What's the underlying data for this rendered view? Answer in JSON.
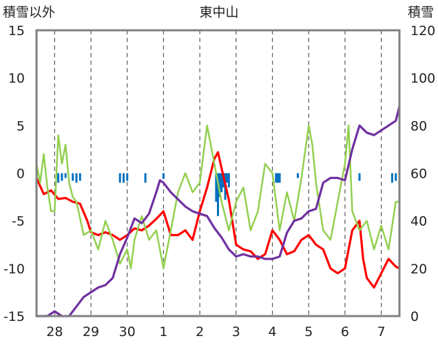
{
  "chart_data": {
    "type": "line",
    "title": "東中山",
    "left_axis_label": "積雪以外",
    "right_axis_label": "積雪",
    "x_tick_labels": [
      "28",
      "29",
      "30",
      "1",
      "2",
      "3",
      "4",
      "5",
      "6",
      "7"
    ],
    "x_range": [
      27.5,
      37.5
    ],
    "left_ylim": [
      -15,
      15
    ],
    "left_yticks": [
      "15",
      "10",
      "5",
      "0",
      "-5",
      "-10",
      "-15"
    ],
    "right_ylim": [
      0,
      120
    ],
    "right_yticks": [
      "120",
      "100",
      "80",
      "60",
      "40",
      "20",
      "0"
    ],
    "grid": "dashed vertical",
    "colors": {
      "red": "#ff0000",
      "green": "#92d050",
      "purple": "#7030a0",
      "blue": "#0070c0",
      "frame": "#808080"
    },
    "series": [
      {
        "color_key": "red",
        "axis": "left",
        "x": [
          27.5,
          27.7,
          27.9,
          28.1,
          28.3,
          28.5,
          28.7,
          28.9,
          29.0,
          29.2,
          29.4,
          29.6,
          29.8,
          30.0,
          30.2,
          30.4,
          30.6,
          30.8,
          31.0,
          31.2,
          31.4,
          31.6,
          31.8,
          32.0,
          32.2,
          32.4,
          32.5,
          32.6,
          32.8,
          33.0,
          33.2,
          33.4,
          33.6,
          33.8,
          34.0,
          34.2,
          34.4,
          34.6,
          34.8,
          35.0,
          35.2,
          35.4,
          35.6,
          35.8,
          36.0,
          36.2,
          36.4,
          36.5,
          36.6,
          36.8,
          37.0,
          37.2,
          37.4,
          37.5
        ],
        "y": [
          -0.5,
          -2.2,
          -1.8,
          -2.7,
          -2.6,
          -3.0,
          -3.2,
          -5.0,
          -6.2,
          -6.5,
          -6.2,
          -6.5,
          -7.0,
          -6.5,
          -5.8,
          -6.0,
          -5.5,
          -4.8,
          -4.0,
          -6.5,
          -6.5,
          -6.0,
          -7.0,
          -4.0,
          -1.5,
          1.5,
          2.2,
          0.5,
          -2.8,
          -7.5,
          -8.0,
          -8.2,
          -9.0,
          -8.5,
          -6.0,
          -7.0,
          -8.5,
          -8.2,
          -7.0,
          -6.5,
          -7.5,
          -8.0,
          -10.0,
          -10.5,
          -10.0,
          -6.0,
          -5.0,
          -9.0,
          -11.0,
          -12.0,
          -10.5,
          -9.0,
          -9.8,
          -10.0
        ]
      },
      {
        "color_key": "green",
        "axis": "left",
        "x": [
          27.5,
          27.6,
          27.7,
          27.8,
          27.9,
          28.0,
          28.1,
          28.2,
          28.3,
          28.4,
          28.5,
          28.6,
          28.8,
          29.0,
          29.2,
          29.4,
          29.6,
          29.8,
          30.0,
          30.1,
          30.2,
          30.4,
          30.6,
          30.8,
          31.0,
          31.2,
          31.4,
          31.6,
          31.8,
          32.0,
          32.2,
          32.3,
          32.4,
          32.6,
          32.8,
          33.0,
          33.2,
          33.4,
          33.6,
          33.8,
          34.0,
          34.2,
          34.4,
          34.6,
          34.8,
          35.0,
          35.1,
          35.2,
          35.4,
          35.6,
          35.8,
          36.0,
          36.1,
          36.2,
          36.4,
          36.6,
          36.8,
          37.0,
          37.2,
          37.4,
          37.5
        ],
        "y": [
          1.0,
          -1.0,
          2.0,
          -1.5,
          -4.0,
          -4.0,
          4.0,
          1.0,
          3.0,
          -1.0,
          -2.5,
          -3.0,
          -6.5,
          -6.0,
          -8.0,
          -5.0,
          -7.0,
          -9.5,
          -8.0,
          -10.0,
          -7.0,
          -4.5,
          -7.0,
          -6.0,
          -10.0,
          -6.0,
          -2.0,
          0.0,
          -2.0,
          -1.0,
          5.0,
          3.0,
          1.0,
          -3.0,
          -6.0,
          -3.0,
          -1.5,
          -6.0,
          -4.0,
          1.0,
          0.0,
          -6.0,
          -2.0,
          -5.0,
          -0.5,
          5.0,
          3.0,
          -1.0,
          -6.0,
          -7.0,
          -3.0,
          1.0,
          5.0,
          -4.0,
          -6.0,
          -5.0,
          -8.0,
          -5.5,
          -8.0,
          -3.0,
          -3.0
        ]
      },
      {
        "color_key": "purple",
        "axis": "right",
        "x": [
          27.5,
          27.8,
          28.0,
          28.2,
          28.4,
          28.6,
          28.8,
          29.0,
          29.2,
          29.4,
          29.6,
          29.8,
          30.0,
          30.2,
          30.4,
          30.6,
          30.8,
          30.9,
          31.0,
          31.2,
          31.4,
          31.6,
          31.8,
          32.0,
          32.2,
          32.4,
          32.6,
          32.8,
          33.0,
          33.2,
          33.4,
          33.6,
          33.8,
          34.0,
          34.2,
          34.4,
          34.6,
          34.8,
          35.0,
          35.2,
          35.4,
          35.6,
          35.8,
          36.0,
          36.2,
          36.4,
          36.6,
          36.8,
          37.0,
          37.2,
          37.4,
          37.5
        ],
        "y": [
          0,
          0,
          2,
          0,
          0,
          4,
          8,
          10,
          12,
          13,
          16,
          26,
          33,
          41,
          39,
          43,
          52,
          57,
          56,
          52,
          49,
          46,
          44,
          43,
          42,
          37,
          33,
          28,
          25,
          26,
          25,
          25,
          24,
          24,
          25,
          35,
          40,
          41,
          44,
          45,
          56,
          58,
          58,
          57,
          70,
          80,
          77,
          76,
          78,
          80,
          82,
          88
        ]
      }
    ],
    "bars": {
      "color_key": "blue",
      "axis": "left",
      "x": [
        28.1,
        28.2,
        28.3,
        28.5,
        28.6,
        28.7,
        29.8,
        29.9,
        30.0,
        30.5,
        31.0,
        32.45,
        32.5,
        32.55,
        32.6,
        32.65,
        32.7,
        32.75,
        32.8,
        34.1,
        34.15,
        34.2,
        34.7,
        36.4,
        37.3,
        37.4
      ],
      "y": [
        -1.0,
        -0.8,
        -0.5,
        -0.8,
        -1.0,
        -0.8,
        -1.0,
        -1.0,
        -0.8,
        -1.0,
        -0.6,
        -3.0,
        -4.5,
        -2.5,
        -2.0,
        -1.5,
        -2.8,
        -1.0,
        -1.5,
        -1.0,
        -1.0,
        -1.0,
        -0.5,
        -0.8,
        -1.0,
        -0.8
      ]
    }
  }
}
